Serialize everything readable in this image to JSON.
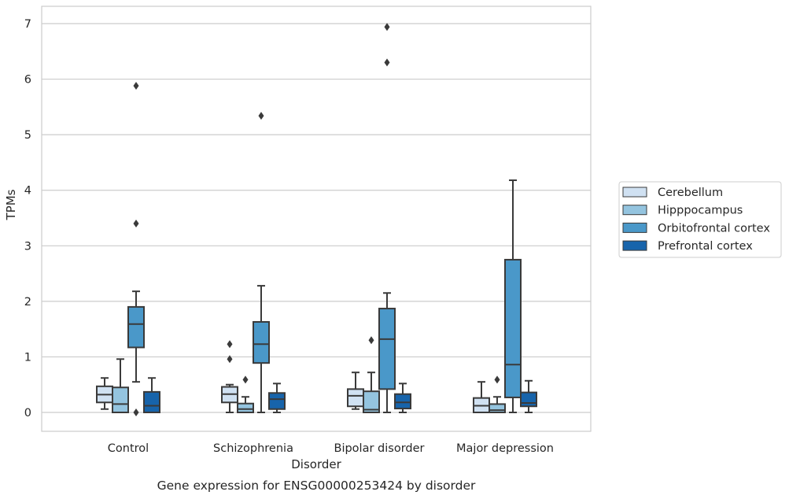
{
  "chart_data": {
    "type": "box",
    "caption": "Gene expression for ENSG00000253424 by disorder",
    "xlabel": "Disorder",
    "ylabel": "TPMs",
    "ylim": [
      -0.33,
      7.3
    ],
    "yticks": [
      0,
      1,
      2,
      3,
      4,
      5,
      6,
      7
    ],
    "grid": "horizontal",
    "legend_position": "right",
    "categories": [
      "Control",
      "Schizophrenia",
      "Bipolar disorder",
      "Major depression"
    ],
    "series": [
      {
        "name": "Cerebellum",
        "color": "#d0e1f2",
        "boxes": [
          {
            "whisker_low": 0.06,
            "q1": 0.18,
            "median": 0.32,
            "q3": 0.47,
            "whisker_high": 0.62,
            "outliers": []
          },
          {
            "whisker_low": 0.0,
            "q1": 0.18,
            "median": 0.33,
            "q3": 0.46,
            "whisker_high": 0.5,
            "outliers": [
              0.96,
              1.23
            ]
          },
          {
            "whisker_low": 0.06,
            "q1": 0.11,
            "median": 0.3,
            "q3": 0.42,
            "whisker_high": 0.72,
            "outliers": []
          },
          {
            "whisker_low": 0.0,
            "q1": 0.0,
            "median": 0.12,
            "q3": 0.26,
            "whisker_high": 0.55,
            "outliers": []
          }
        ]
      },
      {
        "name": "Hipppocampus",
        "color": "#94c4df",
        "boxes": [
          {
            "whisker_low": 0.0,
            "q1": 0.0,
            "median": 0.15,
            "q3": 0.45,
            "whisker_high": 0.96,
            "outliers": []
          },
          {
            "whisker_low": 0.0,
            "q1": 0.0,
            "median": 0.06,
            "q3": 0.16,
            "whisker_high": 0.28,
            "outliers": [
              0.59
            ]
          },
          {
            "whisker_low": 0.0,
            "q1": 0.0,
            "median": 0.05,
            "q3": 0.38,
            "whisker_high": 0.72,
            "outliers": [
              1.3
            ]
          },
          {
            "whisker_low": 0.0,
            "q1": 0.0,
            "median": 0.04,
            "q3": 0.15,
            "whisker_high": 0.28,
            "outliers": [
              0.59
            ]
          }
        ]
      },
      {
        "name": "Orbitofrontal cortex",
        "color": "#4a98c9",
        "boxes": [
          {
            "whisker_low": 0.55,
            "q1": 1.17,
            "median": 1.59,
            "q3": 1.9,
            "whisker_high": 2.18,
            "outliers": [
              0.0,
              3.4,
              5.88
            ]
          },
          {
            "whisker_low": 0.0,
            "q1": 0.89,
            "median": 1.23,
            "q3": 1.63,
            "whisker_high": 2.28,
            "outliers": [
              5.34
            ]
          },
          {
            "whisker_low": 0.0,
            "q1": 0.42,
            "median": 1.32,
            "q3": 1.87,
            "whisker_high": 2.15,
            "outliers": [
              6.3,
              6.94
            ]
          },
          {
            "whisker_low": 0.0,
            "q1": 0.27,
            "median": 0.86,
            "q3": 2.75,
            "whisker_high": 4.18,
            "outliers": []
          }
        ]
      },
      {
        "name": "Prefrontal cortex",
        "color": "#1764ab",
        "boxes": [
          {
            "whisker_low": 0.0,
            "q1": 0.0,
            "median": 0.12,
            "q3": 0.37,
            "whisker_high": 0.62,
            "outliers": []
          },
          {
            "whisker_low": 0.0,
            "q1": 0.06,
            "median": 0.24,
            "q3": 0.35,
            "whisker_high": 0.52,
            "outliers": []
          },
          {
            "whisker_low": 0.0,
            "q1": 0.07,
            "median": 0.18,
            "q3": 0.33,
            "whisker_high": 0.52,
            "outliers": []
          },
          {
            "whisker_low": 0.0,
            "q1": 0.11,
            "median": 0.17,
            "q3": 0.36,
            "whisker_high": 0.57,
            "outliers": []
          }
        ]
      }
    ]
  }
}
